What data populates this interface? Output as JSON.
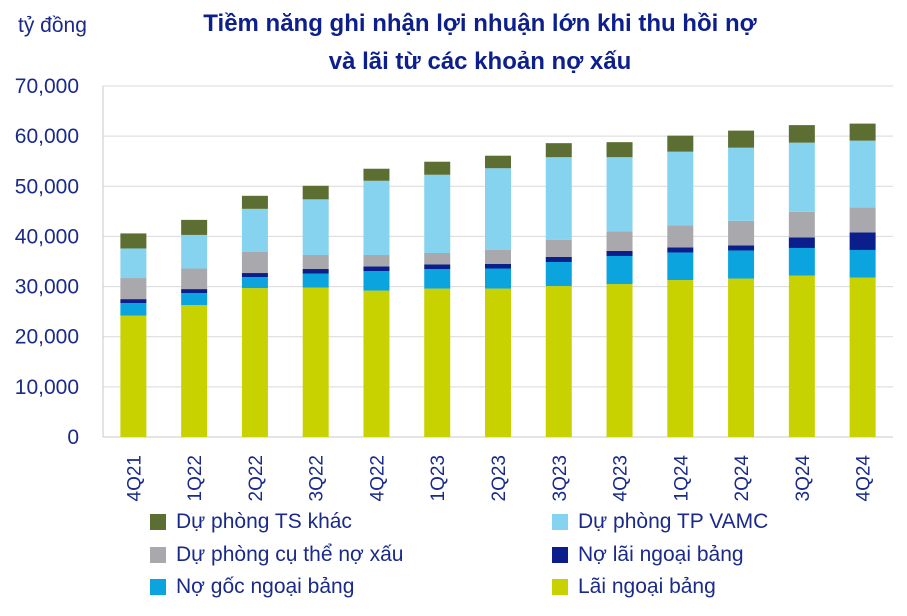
{
  "chart_data": {
    "type": "bar",
    "stacked": true,
    "title": "Tiềm năng ghi nhận lợi nhuận lớn khi thu hồi nợ và lãi từ các khoản nợ xấu",
    "title_lines": [
      "Tiềm năng ghi nhận lợi nhuận lớn khi thu hồi nợ",
      "và lãi từ các khoản nợ xấu"
    ],
    "ylabel": "tỷ đồng",
    "ylim": [
      0,
      70000
    ],
    "yticks": [
      0,
      10000,
      20000,
      30000,
      40000,
      50000,
      60000,
      70000
    ],
    "ytick_labels": [
      "0",
      "10,000",
      "20,000",
      "30,000",
      "40,000",
      "50,000",
      "60,000",
      "70,000"
    ],
    "grid": true,
    "legend_position": "bottom",
    "categories": [
      "4Q21",
      "1Q22",
      "2Q22",
      "3Q22",
      "4Q22",
      "1Q23",
      "2Q23",
      "3Q23",
      "4Q23",
      "1Q24",
      "2Q24",
      "3Q24",
      "4Q24"
    ],
    "series": [
      {
        "name": "Lãi ngoại bảng",
        "color": "#c8d200",
        "values": [
          24200,
          26300,
          29700,
          29800,
          29200,
          29600,
          29600,
          30100,
          30500,
          31300,
          31600,
          32200,
          31800
        ]
      },
      {
        "name": "Nợ gốc ngoại bảng",
        "color": "#0ba4df",
        "values": [
          2500,
          2400,
          2200,
          2800,
          3900,
          3900,
          4000,
          4800,
          5600,
          5500,
          5600,
          5500,
          5500
        ]
      },
      {
        "name": "Nợ lãi ngoại bảng",
        "color": "#0a1e8c",
        "values": [
          800,
          800,
          800,
          900,
          900,
          900,
          900,
          1000,
          1000,
          1000,
          1000,
          2100,
          3500
        ]
      },
      {
        "name": "Dự phòng cụ thể nợ xấu",
        "color": "#a8a8ad",
        "values": [
          4200,
          4100,
          4200,
          2800,
          2300,
          2300,
          2800,
          3400,
          3900,
          4400,
          4900,
          5100,
          5000
        ]
      },
      {
        "name": "Dự phòng TP VAMC",
        "color": "#86d3ef",
        "values": [
          5900,
          6700,
          8600,
          11100,
          14800,
          15600,
          16300,
          16500,
          14800,
          14700,
          14600,
          13800,
          13300
        ]
      },
      {
        "name": "Dự phòng TS khác",
        "color": "#5c6e32",
        "values": [
          3000,
          3000,
          2600,
          2700,
          2400,
          2600,
          2500,
          2800,
          3000,
          3200,
          3400,
          3500,
          3400
        ]
      }
    ],
    "legend_order": [
      "Dự phòng TS khác",
      "Dự phòng TP VAMC",
      "Dự phòng cụ thể nợ xấu",
      "Nợ lãi ngoại bảng",
      "Nợ gốc ngoại bảng",
      "Lãi ngoại bảng"
    ]
  }
}
